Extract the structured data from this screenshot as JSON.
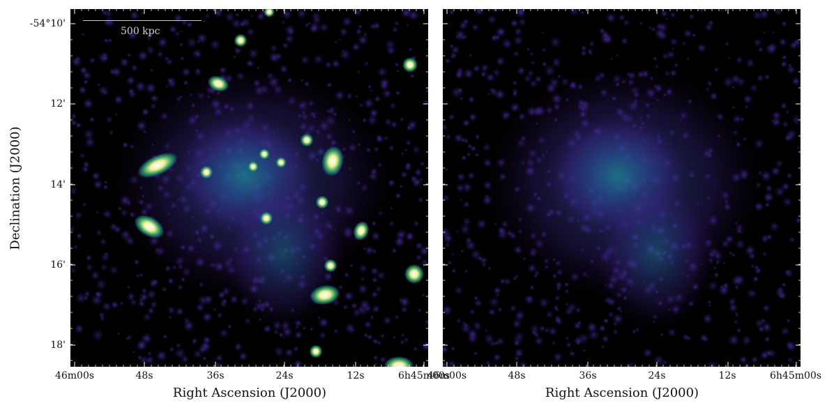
{
  "figure": {
    "panels": [
      {
        "id": "left",
        "description_type": "x-ray image with point sources"
      },
      {
        "id": "right",
        "description_type": "x-ray image point sources removed"
      }
    ],
    "ylabel": "Declination (J2000)",
    "xlabel": "Right Ascension (J2000)",
    "yticks": [
      "-54°10'",
      "12'",
      "14'",
      "16'",
      "18'"
    ],
    "xticks": [
      "46m00s",
      "48s",
      "36s",
      "24s",
      "12s",
      "6h45m00s"
    ],
    "scalebar_label": "500 kpc",
    "colormap": [
      "#000000",
      "#2a0845",
      "#3b2a8a",
      "#2c5f9e",
      "#1f8f8f",
      "#5cc46a",
      "#f5f0a0",
      "#ffffff"
    ]
  }
}
